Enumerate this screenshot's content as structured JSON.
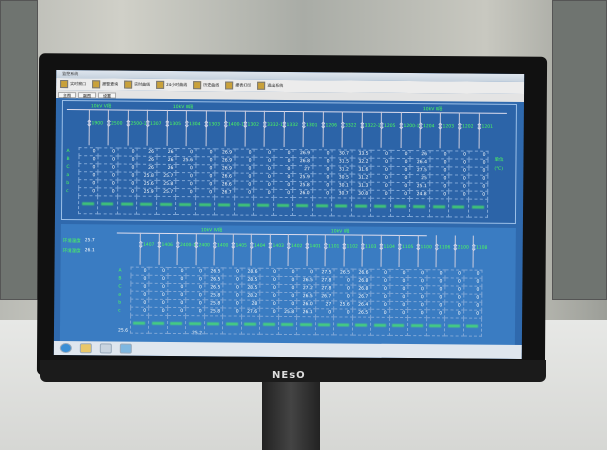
{
  "monitor": {
    "brand": "NEsO"
  },
  "window": {
    "title": "监控系统"
  },
  "toolbar": [
    "实时窗口",
    "报警查询",
    "实时曲线",
    "24小时曲线",
    "历史曲线",
    "报表打印",
    "退出系统"
  ],
  "tabs": [
    "主图",
    "副图",
    "设置"
  ],
  "upper": {
    "bus_left": "10kV Ⅴ段",
    "bus_mid": "10kV Ⅲ段",
    "bus_right": "10kV Ⅱ段",
    "row_labels": [
      "A",
      "B",
      "C",
      "a",
      "b",
      "c"
    ],
    "unit": "单位",
    "unit2": "(℃)",
    "columns": [
      {
        "id": "1900",
        "v": [
          "0",
          "0",
          "0",
          "0",
          "0",
          "0"
        ]
      },
      {
        "id": "2500",
        "v": [
          "0",
          "0",
          "0",
          "0",
          "0",
          "0"
        ]
      },
      {
        "id": "2500-1",
        "v": [
          "0",
          "0",
          "0",
          "0",
          "0",
          "0"
        ]
      },
      {
        "id": "1307",
        "v": [
          "26",
          "26",
          "26",
          "25.8",
          "25.6",
          "25.9"
        ]
      },
      {
        "id": "1305",
        "v": [
          "26",
          "26",
          "26",
          "25.7",
          "25.8",
          "25.7"
        ]
      },
      {
        "id": "1304",
        "v": [
          "0",
          "25.6",
          "0",
          "0",
          "0",
          "0"
        ]
      },
      {
        "id": "1303",
        "v": [
          "0",
          "0",
          "0",
          "0",
          "0",
          "0"
        ]
      },
      {
        "id": "1400-1",
        "v": [
          "26.9",
          "26.9",
          "26.9",
          "26.6",
          "26.6",
          "26.7"
        ]
      },
      {
        "id": "1302",
        "v": [
          "0",
          "0",
          "0",
          "0",
          "0",
          "0"
        ]
      },
      {
        "id": "3332-1",
        "v": [
          "0",
          "0",
          "0",
          "0",
          "0",
          "0"
        ]
      },
      {
        "id": "1332",
        "v": [
          "0",
          "0",
          "0",
          "0",
          "0",
          "0"
        ]
      },
      {
        "id": "1301",
        "v": [
          "26.9",
          "26.8",
          "27",
          "25.9",
          "25.8",
          "26.0"
        ]
      },
      {
        "id": "1206",
        "v": [
          "0",
          "0",
          "0",
          "0",
          "0",
          "0"
        ]
      },
      {
        "id": "3322",
        "v": [
          "30.7",
          "31.5",
          "31.2",
          "30.5",
          "30.1",
          "30.7"
        ]
      },
      {
        "id": "3322-1",
        "v": [
          "33.5",
          "32.2",
          "31.6",
          "31.2",
          "31.3",
          "30.8"
        ]
      },
      {
        "id": "1205",
        "v": [
          "0",
          "0",
          "0",
          "0",
          "0",
          "0"
        ]
      },
      {
        "id": "1200-1",
        "v": [
          "0",
          "0",
          "0",
          "0",
          "0",
          "0"
        ]
      },
      {
        "id": "1204",
        "v": [
          "26",
          "26.4",
          "27.5",
          "25",
          "25.1",
          "24.8"
        ]
      },
      {
        "id": "1203",
        "v": [
          "0",
          "0",
          "0",
          "0",
          "0",
          "0"
        ]
      },
      {
        "id": "1202",
        "v": [
          "0",
          "0",
          "0",
          "0",
          "0",
          "0"
        ]
      },
      {
        "id": "1201",
        "v": [
          "0",
          "0",
          "0",
          "0",
          "0",
          "0"
        ]
      }
    ]
  },
  "lower": {
    "env_temp_label": "环境温度",
    "env_temp": "25.7",
    "env_hum_label": "环境湿度",
    "env_hum": "26.1",
    "bus_left": "10kV Ⅳ段",
    "bus_right": "10kV Ⅰ段",
    "footer_val1": "25.6",
    "footer_val2": "25.2",
    "row_labels": [
      "A",
      "B",
      "C",
      "a",
      "b",
      "c"
    ],
    "columns": [
      {
        "id": "1407",
        "v": [
          "0",
          "0",
          "0",
          "0",
          "0",
          "0"
        ]
      },
      {
        "id": "1406",
        "v": [
          "0",
          "0",
          "0",
          "0",
          "0",
          "0"
        ]
      },
      {
        "id": "2400-1",
        "v": [
          "0",
          "0",
          "0",
          "0",
          "0",
          "0"
        ]
      },
      {
        "id": "2400",
        "v": [
          "0",
          "0",
          "0",
          "0",
          "0",
          "0"
        ]
      },
      {
        "id": "1400",
        "v": [
          "26.5",
          "26.5",
          "26.5",
          "25.8",
          "25.8",
          "25.8"
        ]
      },
      {
        "id": "1405",
        "v": [
          "0",
          "0",
          "0",
          "0",
          "0",
          "0"
        ]
      },
      {
        "id": "1404",
        "v": [
          "28.6",
          "28.5",
          "28.5",
          "28.2",
          "28",
          "27.6"
        ]
      },
      {
        "id": "1403",
        "v": [
          "0",
          "0",
          "0",
          "0",
          "0",
          "0"
        ]
      },
      {
        "id": "1402",
        "v": [
          "0",
          "0",
          "0",
          "0",
          "0",
          "25.8"
        ]
      },
      {
        "id": "1401",
        "v": [
          "0",
          "26.5",
          "27.2",
          "26.5",
          "26.0",
          "26.1"
        ]
      },
      {
        "id": "1101",
        "v": [
          "27.5",
          "27.8",
          "27.8",
          "26.7",
          "27",
          "0"
        ]
      },
      {
        "id": "1102",
        "v": [
          "26.5",
          "0",
          "0",
          "0",
          "25.6",
          "0"
        ]
      },
      {
        "id": "1103",
        "v": [
          "26.6",
          "26.8",
          "26.8",
          "26.7",
          "26.4",
          "26.5"
        ]
      },
      {
        "id": "1104",
        "v": [
          "0",
          "0",
          "0",
          "0",
          "0",
          "0"
        ]
      },
      {
        "id": "1105",
        "v": [
          "0",
          "0",
          "0",
          "0",
          "0",
          "0"
        ]
      },
      {
        "id": "1100",
        "v": [
          "0",
          "0",
          "0",
          "0",
          "0",
          "0"
        ]
      },
      {
        "id": "1106",
        "v": [
          "0",
          "0",
          "0",
          "0",
          "0",
          "0"
        ]
      },
      {
        "id": "2100",
        "v": [
          "0",
          "0",
          "0",
          "0",
          "0",
          "0"
        ]
      },
      {
        "id": "1108",
        "v": [
          "0",
          "0",
          "0",
          "0",
          "0",
          "0"
        ]
      }
    ]
  }
}
